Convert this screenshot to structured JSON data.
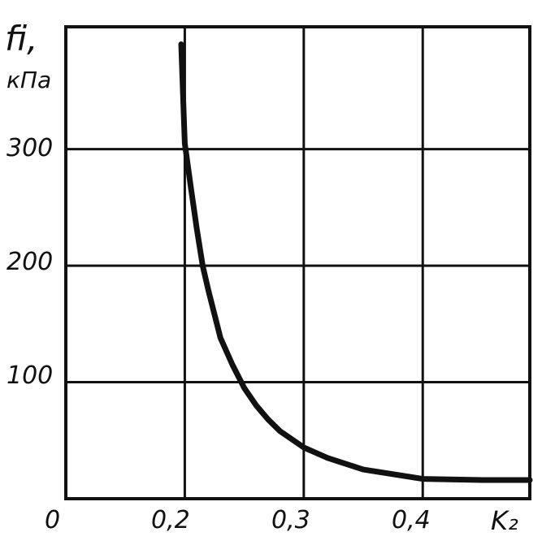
{
  "chart_data": {
    "type": "line",
    "ylabel_symbol": "fi,",
    "ylabel_unit": "кПа",
    "xlabel": "K₂",
    "origin_label": "0",
    "x_ticks": [
      "0,2",
      "0,3",
      "0,4"
    ],
    "y_ticks": [
      "100",
      "200",
      "300"
    ],
    "xlim": [
      0.1,
      0.49
    ],
    "ylim": [
      0,
      405
    ],
    "grid": true,
    "series": [
      {
        "x": [
          0.197,
          0.2,
          0.205,
          0.21,
          0.215,
          0.22,
          0.23,
          0.24,
          0.25,
          0.26,
          0.27,
          0.28,
          0.3,
          0.32,
          0.35,
          0.4,
          0.45,
          0.49
        ],
        "y": [
          390,
          305,
          268,
          232,
          200,
          178,
          138,
          115,
          95,
          80,
          68,
          58,
          44,
          35,
          25,
          17,
          16,
          16
        ]
      }
    ],
    "color": "#111111"
  }
}
